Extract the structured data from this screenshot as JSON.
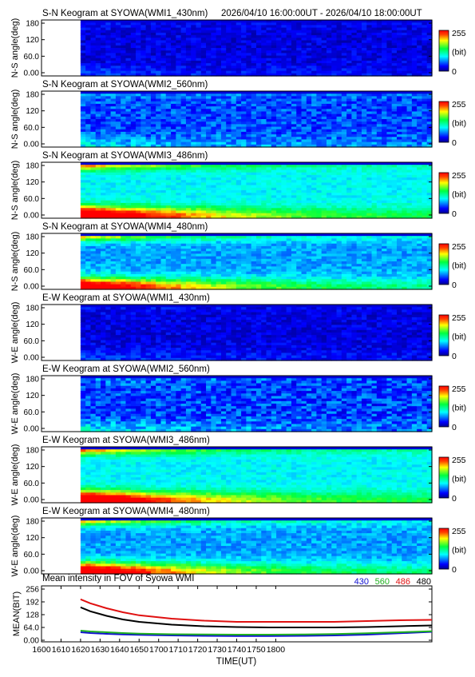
{
  "date_range": "2026/04/10 16:00:00UT - 2026/04/10 18:00:00UT",
  "keograms": [
    {
      "title": "S-N Keogram at SYOWA(WMI1_430nm)",
      "ylabel": "N-S angle(deg)",
      "base": 22,
      "bright": 0.05,
      "horizon": 0.1,
      "mottle": 0.12
    },
    {
      "title": "S-N Keogram at SYOWA(WMI2_560nm)",
      "ylabel": "N-S angle(deg)",
      "base": 48,
      "bright": 0.1,
      "horizon": 0.15,
      "mottle": 0.18
    },
    {
      "title": "S-N Keogram at SYOWA(WMI3_486nm)",
      "ylabel": "N-S angle(deg)",
      "base": 92,
      "bright": 0.85,
      "horizon": 0.45,
      "mottle": 0.1
    },
    {
      "title": "S-N Keogram at SYOWA(WMI4_480nm)",
      "ylabel": "N-S angle(deg)",
      "base": 70,
      "bright": 0.8,
      "horizon": 0.55,
      "mottle": 0.12
    },
    {
      "title": "E-W Keogram at SYOWA(WMI1_430nm)",
      "ylabel": "W-E angle(deg)",
      "base": 22,
      "bright": 0.05,
      "horizon": 0.1,
      "mottle": 0.12
    },
    {
      "title": "E-W Keogram at SYOWA(WMI2_560nm)",
      "ylabel": "W-E angle(deg)",
      "base": 46,
      "bright": 0.1,
      "horizon": 0.15,
      "mottle": 0.2
    },
    {
      "title": "E-W Keogram at SYOWA(WMI3_486nm)",
      "ylabel": "W-E angle(deg)",
      "base": 92,
      "bright": 0.85,
      "horizon": 0.45,
      "mottle": 0.1
    },
    {
      "title": "E-W Keogram at SYOWA(WMI4_480nm)",
      "ylabel": "W-E angle(deg)",
      "base": 70,
      "bright": 0.8,
      "horizon": 0.55,
      "mottle": 0.12
    }
  ],
  "keogram_yticks": [
    "180",
    "120",
    "60.0",
    "0.00"
  ],
  "keogram_ytick_values": [
    180,
    120,
    60,
    0
  ],
  "keogram_ylim": [
    0,
    180
  ],
  "colorbar": {
    "max_label": "255",
    "unit_label": "(bit)",
    "min_label": "0"
  },
  "chart_data": {
    "type": "line",
    "title": "Mean intensity in FOV of Syowa WMI",
    "xlabel": "TIME(UT)",
    "ylabel": "MEAN(BIT)",
    "xlim": [
      1600,
      1800
    ],
    "ylim": [
      0,
      256
    ],
    "x_ticks": [
      "1600",
      "1610",
      "1620",
      "1630",
      "1640",
      "1650",
      "1700",
      "1710",
      "1720",
      "1730",
      "1740",
      "1750",
      "1800"
    ],
    "y_ticks": [
      "256",
      "192",
      "128",
      "64.0",
      "0.00"
    ],
    "y_tick_values": [
      256,
      192,
      128,
      64,
      0
    ],
    "data_start": "1612",
    "x": [
      "1612",
      "1615",
      "1620",
      "1625",
      "1630",
      "1640",
      "1650",
      "1700",
      "1710",
      "1720",
      "1730",
      "1740",
      "1750",
      "1800"
    ],
    "series": [
      {
        "name": "430",
        "color": "#1010d0",
        "values": [
          40,
          36,
          32,
          29,
          27,
          24,
          22,
          21,
          21,
          22,
          24,
          28,
          35,
          42
        ]
      },
      {
        "name": "560",
        "color": "#20b020",
        "values": [
          48,
          44,
          40,
          36,
          33,
          30,
          29,
          28,
          28,
          29,
          31,
          35,
          40,
          45
        ]
      },
      {
        "name": "486",
        "color": "#e01010",
        "values": [
          205,
          185,
          160,
          140,
          125,
          108,
          98,
          92,
          92,
          92,
          92,
          96,
          100,
          102
        ]
      },
      {
        "name": "480",
        "color": "#000000",
        "values": [
          165,
          145,
          122,
          104,
          92,
          78,
          70,
          66,
          64,
          64,
          64,
          66,
          70,
          74
        ]
      }
    ]
  }
}
